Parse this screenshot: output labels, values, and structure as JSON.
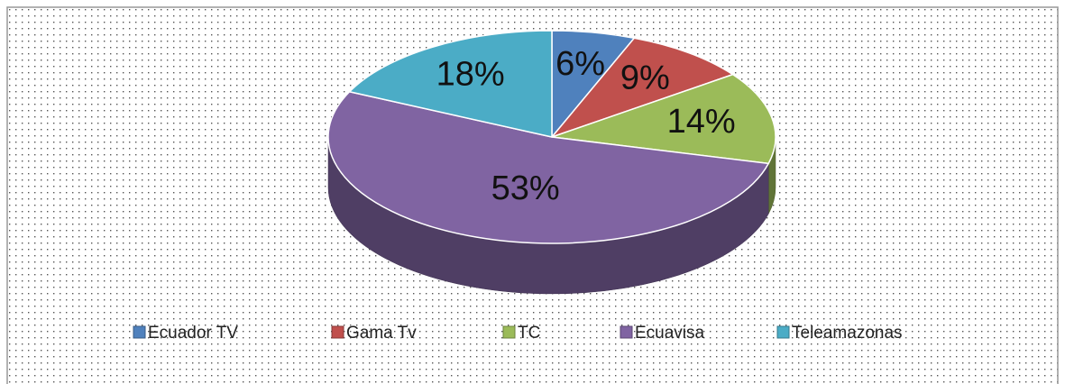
{
  "chart_data": {
    "type": "pie",
    "categories": [
      "Ecuador TV",
      "Gama Tv",
      "TC",
      "Ecuavisa",
      "Teleamazonas"
    ],
    "values": [
      6,
      9,
      14,
      53,
      18
    ],
    "value_labels": [
      "6%",
      "9%",
      "14%",
      "53%",
      "18%"
    ],
    "colors": [
      "#4f81bd",
      "#c0504d",
      "#9bbb59",
      "#8064a2",
      "#4bacc6"
    ],
    "legend": "bottom"
  }
}
